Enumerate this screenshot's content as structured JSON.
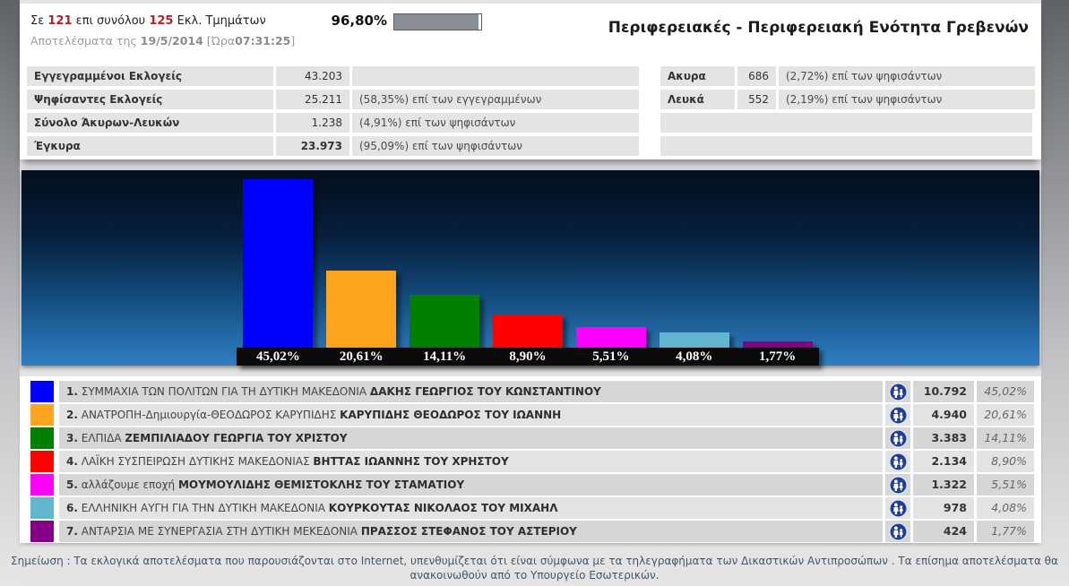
{
  "page": {
    "title": "Περιφερειακές - Περιφερειακή Ενότητα Γρεβενών"
  },
  "header": {
    "line1_prefix": "Σε",
    "reporting_sections": "121",
    "line1_middle": "επι συνόλου",
    "total_sections": "125",
    "line1_suffix": "Εκλ. Τμημάτων",
    "percent_reporting": "96,80%",
    "progress_value": 96.8,
    "line2_prefix": "Αποτελέσματα της",
    "results_date": "19/5/2014",
    "line2_time_open": "[Ώρα",
    "results_time": "07:31:25",
    "line2_time_close": "]"
  },
  "stats": {
    "left_rows": [
      {
        "label": "Εγγεγραμμένοι Εκλογείς",
        "value": "43.203",
        "note": ""
      },
      {
        "label": "Ψηφίσαντες Εκλογείς",
        "value": "25.211",
        "note": "(58,35%) επί των εγγεγραμμένων"
      },
      {
        "label": "Σύνολο Άκυρων-Λευκών",
        "value": "1.238",
        "note": "(4,91%) επί των ψηφισάντων"
      },
      {
        "label": "Έγκυρα",
        "value": "23.973",
        "note": "(95,09%) επί των ψηφισάντων"
      }
    ],
    "right_rows": [
      {
        "label": "Ακυρα",
        "value": "686",
        "note": "(2,72%) επί των ψηφισάντων"
      },
      {
        "label": "Λευκά",
        "value": "552",
        "note": "(2,19%) επί των ψηφισάντων"
      },
      {
        "label": "",
        "value": "",
        "note": ""
      },
      {
        "label": "",
        "value": "",
        "note": ""
      }
    ]
  },
  "chart_data": {
    "type": "bar",
    "title": "",
    "xlabel": "",
    "ylabel": "",
    "ylim": [
      0,
      47
    ],
    "grid": false,
    "legend": false,
    "categories": [
      "ΣΥΜΜΑΧΙΑ ΤΩΝ ΠΟΛΙΤΩΝ ΓΙΑ ΤΗ ΔΥΤΙΚΗ ΜΑΚΕΔΟΝΙΑ",
      "ΑΝΑΤΡΟΠΗ-Δημιουργία-ΘΕΟΔΩΡΟΣ ΚΑΡΥΠΙΔΗΣ",
      "ΕΛΠΙΔΑ",
      "ΛΑΪΚΗ ΣΥΣΠΕΙΡΩΣΗ ΔΥΤΙΚΗΣ ΜΑΚΕΔΟΝΙΑΣ",
      "αλλάζουμε εποχή",
      "ΕΛΛΗΝΙΚΗ ΑΥΓΗ ΓΙΑ ΤΗΝ ΔΥΤΙΚΗ ΜΑΚΕΔΟΝΙΑ",
      "ΑΝΤΑΡΣΙΑ ΜΕ ΣΥΝΕΡΓΑΣΙΑ ΣΤΗ ΔΥΤΙΚΗ ΜΕΚΕΔΟΝΙΑ"
    ],
    "values": [
      45.02,
      20.61,
      14.11,
      8.9,
      5.51,
      4.08,
      1.77
    ],
    "value_labels": [
      "45,02%",
      "20,61%",
      "14,11%",
      "8,90%",
      "5,51%",
      "4,08%",
      "1,77%"
    ],
    "colors": [
      "#0000fe",
      "#ffa41e",
      "#008000",
      "#fe0000",
      "#ff00ff",
      "#62b7cf",
      "#850087"
    ]
  },
  "results": {
    "rows": [
      {
        "rank": "1.",
        "party": "ΣΥΜΜΑΧΙΑ ΤΩΝ ΠΟΛΙΤΩΝ ΓΙΑ ΤΗ ΔΥΤΙΚΗ ΜΑΚΕΔΟΝΙΑ",
        "candidate": "ΔΑΚΗΣ ΓΕΩΡΓΙΟΣ ΤΟΥ ΚΩΝΣΤΑΝΤΙΝΟΥ",
        "votes": "10.792",
        "percent": "45,02%",
        "color": "#0000fe"
      },
      {
        "rank": "2.",
        "party": "ΑΝΑΤΡΟΠΗ-Δημιουργία-ΘΕΟΔΩΡΟΣ ΚΑΡΥΠΙΔΗΣ",
        "candidate": "ΚΑΡΥΠΙΔΗΣ ΘΕΟΔΩΡΟΣ ΤΟΥ ΙΩΑΝΝΗ",
        "votes": "4.940",
        "percent": "20,61%",
        "color": "#ffa41e"
      },
      {
        "rank": "3.",
        "party": "ΕΛΠΙΔΑ",
        "candidate": "ΖΕΜΠΙΛΙΑΔΟΥ ΓΕΩΡΓΙΑ ΤΟΥ ΧΡΙΣΤΟΥ",
        "votes": "3.383",
        "percent": "14,11%",
        "color": "#008000"
      },
      {
        "rank": "4.",
        "party": "ΛΑΪΚΗ ΣΥΣΠΕΙΡΩΣΗ ΔΥΤΙΚΗΣ ΜΑΚΕΔΟΝΙΑΣ",
        "candidate": "ΒΗΤΤΑΣ ΙΩΑΝΝΗΣ ΤΟΥ ΧΡΗΣΤΟΥ",
        "votes": "2.134",
        "percent": "8,90%",
        "color": "#fe0000"
      },
      {
        "rank": "5.",
        "party": "αλλάζουμε εποχή",
        "candidate": "ΜΟΥΜΟΥΛΙΔΗΣ ΘΕΜΙΣΤΟΚΛΗΣ ΤΟΥ ΣΤΑΜΑΤΙΟΥ",
        "votes": "1.322",
        "percent": "5,51%",
        "color": "#ff00ff"
      },
      {
        "rank": "6.",
        "party": "ΕΛΛΗΝΙΚΗ ΑΥΓΗ ΓΙΑ ΤΗΝ ΔΥΤΙΚΗ ΜΑΚΕΔΟΝΙΑ",
        "candidate": "ΚΟΥΡΚΟΥΤΑΣ ΝΙΚΟΛΑΟΣ ΤΟΥ ΜΙΧΑΗΛ",
        "votes": "978",
        "percent": "4,08%",
        "color": "#62b7cf"
      },
      {
        "rank": "7.",
        "party": "ΑΝΤΑΡΣΙΑ ΜΕ ΣΥΝΕΡΓΑΣΙΑ ΣΤΗ ΔΥΤΙΚΗ ΜΕΚΕΔΟΝΙΑ",
        "candidate": "ΠΡΑΣΣΟΣ ΣΤΕΦΑΝΟΣ ΤΟΥ ΑΣΤΕΡΙΟΥ",
        "votes": "424",
        "percent": "1,77%",
        "color": "#850087"
      }
    ]
  },
  "footer": {
    "note": "Σημείωση : Τα εκλογικά αποτελέσματα που παρουσιάζονται στο Internet, υπενθυμίζεται ότι είναι σύμφωνα με τα τηλεγραφήματα των Δικαστικών Αντιπροσώπων . Τα επίσημα αποτελέσματα θα ανακοινωθούν από το Υπουργείο Εσωτερικών."
  }
}
